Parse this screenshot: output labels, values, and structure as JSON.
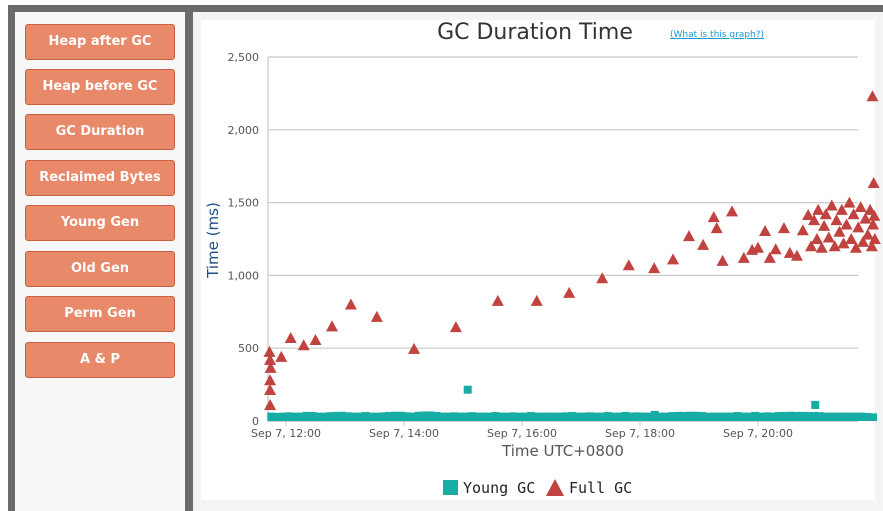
{
  "sidebar": {
    "buttons": [
      "Heap after GC",
      "Heap before GC",
      "GC Duration",
      "Reclaimed Bytes",
      "Young Gen",
      "Old Gen",
      "Perm Gen",
      "A & P"
    ]
  },
  "help_link": "(What is this graph?)",
  "chart_data": {
    "type": "scatter",
    "title": "GC Duration Time",
    "xlabel": "Time UTC+0800",
    "ylabel": "Time (ms)",
    "ylim": [
      0,
      2500
    ],
    "yticks": [
      0,
      500,
      1000,
      1500,
      2000,
      2500
    ],
    "ytick_labels": [
      "0",
      "500",
      "1,000",
      "1,500",
      "2,000",
      "2,500"
    ],
    "xlim_hours": [
      11.7,
      22.2
    ],
    "xticks_hours": [
      12,
      14,
      16,
      18,
      20
    ],
    "xtick_labels": [
      "Sep 7, 12:00",
      "Sep 7, 14:00",
      "Sep 7, 16:00",
      "Sep 7, 18:00",
      "Sep 7, 20:00"
    ],
    "grid": true,
    "legend": "bottom-center",
    "series": [
      {
        "name": "Young GC",
        "marker": "square",
        "color": "#17ada5",
        "start_hour": 11.75,
        "step_hour": 0.1,
        "values": [
          30,
          28,
          30,
          32,
          30,
          30,
          35,
          34,
          30,
          30,
          33,
          35,
          36,
          32,
          30,
          30,
          34,
          30,
          30,
          32,
          35,
          36,
          36,
          32,
          30,
          36,
          38,
          38,
          35,
          30,
          30,
          32,
          30,
          30,
          33,
          30,
          30,
          30,
          34,
          30,
          30,
          32,
          30,
          30,
          34,
          30,
          30,
          30,
          30,
          30,
          32,
          34,
          30,
          30,
          32,
          30,
          30,
          34,
          30,
          30,
          35,
          30,
          32,
          30,
          30,
          42,
          30,
          30,
          34,
          35,
          35,
          36,
          36,
          34,
          30,
          30,
          30,
          30,
          30,
          34,
          30,
          30,
          35,
          30,
          32,
          30,
          34,
          35,
          36,
          35,
          35,
          34,
          34,
          33,
          30,
          30,
          30,
          30,
          30,
          30,
          30,
          28,
          25
        ],
        "outliers": [
          [
            15.08,
            215
          ],
          [
            20.97,
            110
          ]
        ]
      },
      {
        "name": "Full GC",
        "marker": "triangle",
        "color": "#c0433f",
        "points": [
          [
            11.72,
            475
          ],
          [
            11.73,
            420
          ],
          [
            11.74,
            365
          ],
          [
            11.73,
            280
          ],
          [
            11.73,
            213
          ],
          [
            11.73,
            110
          ],
          [
            11.92,
            440
          ],
          [
            12.08,
            570
          ],
          [
            12.3,
            520
          ],
          [
            12.5,
            556
          ],
          [
            12.78,
            650
          ],
          [
            13.1,
            800
          ],
          [
            13.54,
            715
          ],
          [
            14.17,
            495
          ],
          [
            14.88,
            645
          ],
          [
            15.59,
            825
          ],
          [
            16.25,
            825
          ],
          [
            16.8,
            880
          ],
          [
            17.36,
            980
          ],
          [
            17.81,
            1070
          ],
          [
            18.24,
            1050
          ],
          [
            18.56,
            1110
          ],
          [
            18.83,
            1270
          ],
          [
            19.07,
            1210
          ],
          [
            19.25,
            1400
          ],
          [
            19.3,
            1325
          ],
          [
            19.4,
            1100
          ],
          [
            19.56,
            1440
          ],
          [
            19.76,
            1120
          ],
          [
            19.9,
            1175
          ],
          [
            20.0,
            1190
          ],
          [
            20.12,
            1305
          ],
          [
            20.2,
            1120
          ],
          [
            20.3,
            1180
          ],
          [
            20.44,
            1325
          ],
          [
            20.54,
            1155
          ],
          [
            20.66,
            1135
          ],
          [
            20.76,
            1310
          ],
          [
            20.85,
            1415
          ],
          [
            20.9,
            1200
          ],
          [
            20.95,
            1380
          ],
          [
            21.0,
            1250
          ],
          [
            21.02,
            1450
          ],
          [
            21.08,
            1190
          ],
          [
            21.12,
            1340
          ],
          [
            21.15,
            1420
          ],
          [
            21.2,
            1260
          ],
          [
            21.25,
            1480
          ],
          [
            21.3,
            1200
          ],
          [
            21.33,
            1380
          ],
          [
            21.38,
            1300
          ],
          [
            21.42,
            1450
          ],
          [
            21.45,
            1220
          ],
          [
            21.5,
            1350
          ],
          [
            21.55,
            1500
          ],
          [
            21.58,
            1250
          ],
          [
            21.62,
            1420
          ],
          [
            21.66,
            1190
          ],
          [
            21.7,
            1330
          ],
          [
            21.74,
            1470
          ],
          [
            21.78,
            1230
          ],
          [
            21.82,
            1390
          ],
          [
            21.86,
            1280
          ],
          [
            21.9,
            1450
          ],
          [
            21.93,
            1200
          ],
          [
            21.95,
            1350
          ],
          [
            21.97,
            1410
          ],
          [
            21.98,
            1250
          ],
          [
            21.96,
            1635
          ],
          [
            21.94,
            2230
          ]
        ]
      }
    ]
  }
}
